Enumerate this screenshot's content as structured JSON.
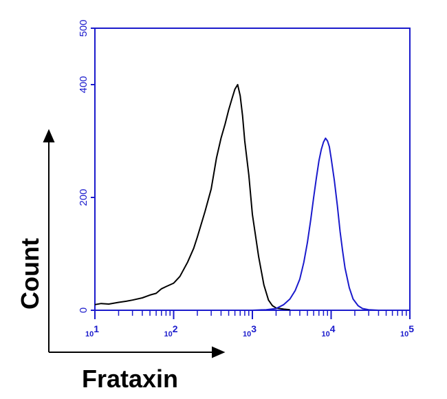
{
  "chart_data": {
    "type": "line",
    "xlabel": "Frataxin",
    "ylabel": "Count",
    "x_scale": "log",
    "xlim": [
      10,
      100000
    ],
    "ylim": [
      0,
      500
    ],
    "y_ticks": [
      "0",
      "200",
      "400",
      "500"
    ],
    "y_tick_values": [
      0,
      200,
      400,
      500
    ],
    "x_ticks": [
      {
        "base": "10",
        "exp": "1",
        "value": 10
      },
      {
        "base": "10",
        "exp": "2",
        "value": 100
      },
      {
        "base": "10",
        "exp": "3",
        "value": 1000
      },
      {
        "base": "10",
        "exp": "4",
        "value": 10000
      },
      {
        "base": "10",
        "exp": "5",
        "value": 100000
      }
    ],
    "grid": false,
    "series": [
      {
        "color": "#000000",
        "points": [
          [
            10,
            10
          ],
          [
            12,
            12
          ],
          [
            15,
            11
          ],
          [
            20,
            14
          ],
          [
            25,
            16
          ],
          [
            30,
            18
          ],
          [
            40,
            22
          ],
          [
            50,
            27
          ],
          [
            60,
            30
          ],
          [
            70,
            38
          ],
          [
            80,
            42
          ],
          [
            100,
            48
          ],
          [
            120,
            60
          ],
          [
            150,
            85
          ],
          [
            180,
            110
          ],
          [
            200,
            130
          ],
          [
            250,
            175
          ],
          [
            300,
            215
          ],
          [
            350,
            270
          ],
          [
            400,
            305
          ],
          [
            450,
            330
          ],
          [
            500,
            355
          ],
          [
            550,
            375
          ],
          [
            600,
            392
          ],
          [
            650,
            400
          ],
          [
            700,
            380
          ],
          [
            750,
            345
          ],
          [
            800,
            300
          ],
          [
            900,
            240
          ],
          [
            1000,
            170
          ],
          [
            1200,
            95
          ],
          [
            1400,
            45
          ],
          [
            1600,
            18
          ],
          [
            1800,
            8
          ],
          [
            2000,
            4
          ],
          [
            2500,
            2
          ],
          [
            3000,
            1
          ]
        ]
      },
      {
        "color": "#1a1acc",
        "points": [
          [
            10,
            0
          ],
          [
            1000,
            0
          ],
          [
            1500,
            1
          ],
          [
            2000,
            3
          ],
          [
            2500,
            10
          ],
          [
            3000,
            20
          ],
          [
            3500,
            35
          ],
          [
            4000,
            55
          ],
          [
            4500,
            85
          ],
          [
            5000,
            120
          ],
          [
            5500,
            160
          ],
          [
            6000,
            200
          ],
          [
            6500,
            235
          ],
          [
            7000,
            265
          ],
          [
            7500,
            285
          ],
          [
            8000,
            298
          ],
          [
            8500,
            305
          ],
          [
            9000,
            300
          ],
          [
            9500,
            290
          ],
          [
            10000,
            270
          ],
          [
            11000,
            230
          ],
          [
            12000,
            185
          ],
          [
            13000,
            140
          ],
          [
            14000,
            105
          ],
          [
            15000,
            75
          ],
          [
            17000,
            40
          ],
          [
            19000,
            20
          ],
          [
            22000,
            8
          ],
          [
            25000,
            3
          ],
          [
            30000,
            1
          ],
          [
            40000,
            0
          ],
          [
            100000,
            0
          ]
        ]
      }
    ]
  }
}
